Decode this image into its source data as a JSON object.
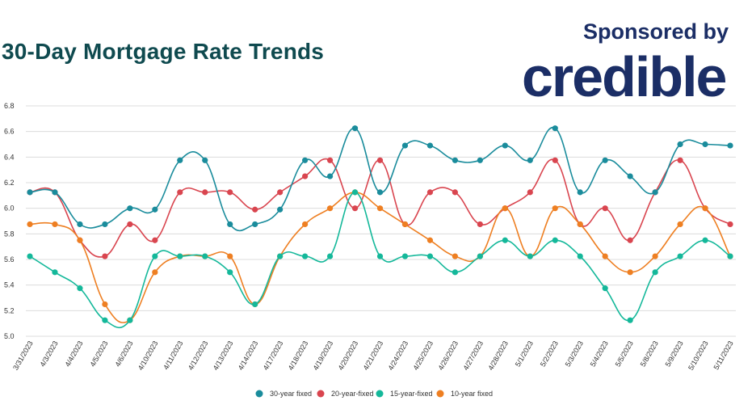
{
  "header": {
    "title": "30-Day Mortgage Rate Trends",
    "sponsor_label": "Sponsored by",
    "brand_logo_text": "credible"
  },
  "colors": {
    "title": "#0f4a4f",
    "brand": "#1b2e66",
    "grid": "#dcdcdc"
  },
  "chart_data": {
    "type": "line",
    "title": "30-Day Mortgage Rate Trends",
    "xlabel": "",
    "ylabel": "",
    "ylim": [
      5.0,
      6.8
    ],
    "yticks": [
      5.0,
      5.2,
      5.4,
      5.6,
      5.8,
      6.0,
      6.2,
      6.4,
      6.6,
      6.8
    ],
    "grid": "horizontal",
    "legend": "bottom-center",
    "smooth": true,
    "categories": [
      "3/31/2023",
      "4/3/2023",
      "4/4/2023",
      "4/5/2023",
      "4/6/2023",
      "4/10/2023",
      "4/11/2023",
      "4/12/2023",
      "4/13/2023",
      "4/14/2023",
      "4/17/2023",
      "4/18/2023",
      "4/19/2023",
      "4/20/2023",
      "4/21/2023",
      "4/24/2023",
      "4/25/2023",
      "4/26/2023",
      "4/27/2023",
      "4/28/2023",
      "5/1/2023",
      "5/2/2023",
      "5/3/2023",
      "5/4/2023",
      "5/5/2023",
      "5/8/2023",
      "5/9/2023",
      "5/10/2023",
      "5/11/2023"
    ],
    "series": [
      {
        "name": "30-year fixed",
        "color": "#1a8c9c",
        "values": [
          6.125,
          6.125,
          5.875,
          5.875,
          6.0,
          5.99,
          6.375,
          6.375,
          5.875,
          5.875,
          5.99,
          6.375,
          6.25,
          6.625,
          6.125,
          6.49,
          6.49,
          6.375,
          6.375,
          6.49,
          6.375,
          6.625,
          6.125,
          6.375,
          6.25,
          6.125,
          6.5,
          6.5,
          6.49
        ]
      },
      {
        "name": "20-year-fixed",
        "color": "#d9454f",
        "values": [
          6.125,
          6.125,
          5.75,
          5.625,
          5.875,
          5.75,
          6.125,
          6.125,
          6.125,
          5.99,
          6.125,
          6.25,
          6.375,
          6.0,
          6.375,
          5.875,
          6.125,
          6.125,
          5.875,
          6.0,
          6.125,
          6.375,
          5.875,
          6.0,
          5.75,
          6.125,
          6.375,
          6.0,
          5.875
        ]
      },
      {
        "name": "15-year-fixed",
        "color": "#14b89a",
        "values": [
          5.625,
          5.5,
          5.375,
          5.125,
          5.125,
          5.625,
          5.625,
          5.625,
          5.5,
          5.25,
          5.625,
          5.625,
          5.625,
          6.125,
          5.625,
          5.625,
          5.625,
          5.5,
          5.625,
          5.75,
          5.625,
          5.75,
          5.625,
          5.375,
          5.125,
          5.5,
          5.625,
          5.75,
          5.625
        ]
      },
      {
        "name": "10-year fixed",
        "color": "#ee7f22",
        "values": [
          5.875,
          5.875,
          5.75,
          5.25,
          5.125,
          5.5,
          5.625,
          5.625,
          5.625,
          5.25,
          5.625,
          5.875,
          6.0,
          6.125,
          6.0,
          5.875,
          5.75,
          5.625,
          5.625,
          6.0,
          5.625,
          6.0,
          5.875,
          5.625,
          5.5,
          5.625,
          5.875,
          6.0,
          5.625
        ]
      }
    ]
  }
}
